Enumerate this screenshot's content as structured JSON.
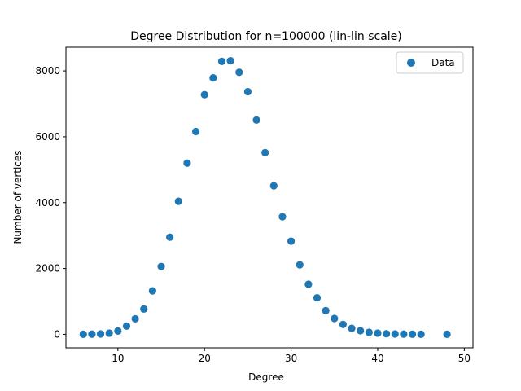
{
  "chart_data": {
    "type": "scatter",
    "title": "Degree Distribution for n=100000 (lin-lin scale)",
    "xlabel": "Degree",
    "ylabel": "Number of vertices",
    "xlim": [
      4,
      51
    ],
    "ylim": [
      -410,
      8720
    ],
    "xticks": [
      10,
      20,
      30,
      40,
      50
    ],
    "yticks": [
      0,
      2000,
      4000,
      6000,
      8000
    ],
    "grid": false,
    "legend_position": "top-right",
    "marker_color": "#1f77b4",
    "series": [
      {
        "name": "Data",
        "x": [
          6,
          7,
          8,
          9,
          10,
          11,
          12,
          13,
          14,
          15,
          16,
          17,
          18,
          19,
          20,
          21,
          22,
          23,
          24,
          25,
          26,
          27,
          28,
          29,
          30,
          31,
          32,
          33,
          34,
          35,
          36,
          37,
          38,
          39,
          40,
          41,
          42,
          43,
          44,
          45,
          48
        ],
        "y": [
          2,
          5,
          12,
          35,
          100,
          250,
          470,
          770,
          1320,
          2060,
          2950,
          4040,
          5200,
          6160,
          7280,
          7790,
          8290,
          8310,
          7960,
          7370,
          6510,
          5520,
          4510,
          3570,
          2830,
          2110,
          1520,
          1110,
          720,
          480,
          300,
          180,
          110,
          60,
          35,
          18,
          10,
          6,
          3,
          2,
          1
        ]
      }
    ]
  }
}
